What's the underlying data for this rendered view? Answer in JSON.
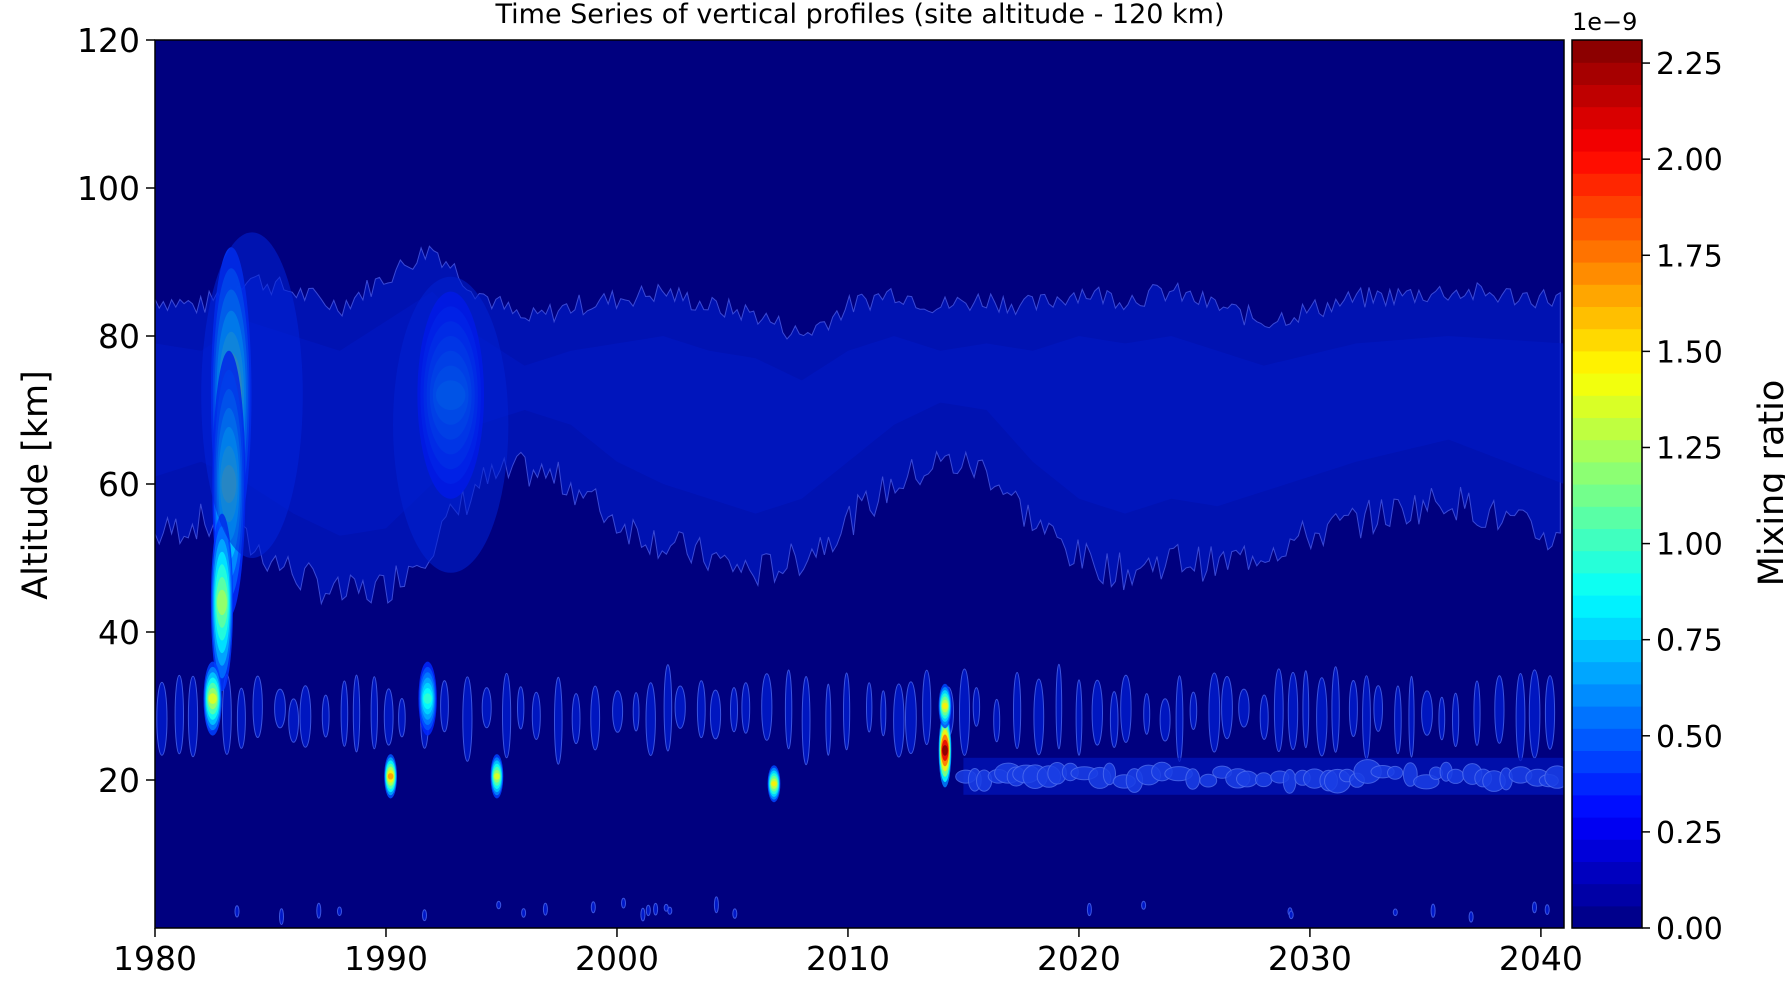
{
  "chart_data": {
    "type": "heatmap",
    "subtype": "filled-contour",
    "title": "Time Series of vertical profiles (site altitude - 120 km)",
    "xlabel": "",
    "ylabel": "Altitude [km]",
    "xlim": [
      1980,
      2041
    ],
    "ylim": [
      0,
      120
    ],
    "xticks": [
      1980,
      1990,
      2000,
      2010,
      2020,
      2030,
      2040
    ],
    "xtick_labels": [
      "1980",
      "1990",
      "2000",
      "2010",
      "2020",
      "2030",
      "2040"
    ],
    "yticks": [
      20,
      40,
      60,
      80,
      100,
      120
    ],
    "ytick_labels": [
      "20",
      "40",
      "60",
      "80",
      "100",
      "120"
    ],
    "colorbar": {
      "label": "Mixing ratio",
      "offset_text": "1e−9",
      "range": [
        0,
        2.31
      ],
      "ticks": [
        0,
        0.25,
        0.5,
        0.75,
        1.0,
        1.25,
        1.5,
        1.75,
        2.0,
        2.25
      ],
      "tick_labels": [
        "0.00",
        "0.25",
        "0.50",
        "0.75",
        "1.00",
        "1.25",
        "1.50",
        "1.75",
        "2.00",
        "2.25"
      ],
      "colormap": "jet",
      "levels": 40
    },
    "background_color": "#00007f",
    "middle_layer": {
      "description_values": "mixing ratio approx 0.15 (x1e-9) band",
      "bottom_km": [
        53,
        55,
        52,
        48,
        45,
        46,
        52,
        60,
        62,
        60,
        55,
        52,
        50,
        48,
        50,
        55,
        60,
        63,
        62,
        55,
        50,
        48,
        50,
        49,
        51,
        55,
        58,
        52
      ],
      "top_km": [
        85,
        84,
        88,
        86,
        84,
        88,
        92,
        86,
        82,
        84,
        85,
        86,
        84,
        83,
        80,
        84,
        86,
        84,
        85,
        84,
        86,
        85,
        86,
        84,
        82,
        85,
        86,
        85
      ],
      "years": [
        1980,
        1982,
        1984,
        1986,
        1988,
        1990,
        1992,
        1994,
        1996,
        1998,
        2000,
        2002,
        2004,
        2006,
        2008,
        2010,
        2012,
        2014,
        2016,
        2018,
        2020,
        2022,
        2024,
        2026,
        2028,
        2032,
        2036,
        2041
      ]
    },
    "plumes": [
      {
        "year": 1983.3,
        "alt_km": 72,
        "peak": 0.95,
        "width_yr": 0.55,
        "height_km": 20
      },
      {
        "year": 1983.2,
        "alt_km": 60,
        "peak": 0.8,
        "width_yr": 0.45,
        "height_km": 18
      },
      {
        "year": 1982.9,
        "alt_km": 44,
        "peak": 0.95,
        "width_yr": 0.3,
        "height_km": 12
      },
      {
        "year": 1982.5,
        "alt_km": 31,
        "peak": 1.1,
        "width_yr": 0.25,
        "height_km": 5
      },
      {
        "year": 1992.8,
        "alt_km": 72,
        "peak": 0.35,
        "width_yr": 0.9,
        "height_km": 14
      },
      {
        "year": 1991.8,
        "alt_km": 31,
        "peak": 0.7,
        "width_yr": 0.25,
        "height_km": 5
      },
      {
        "year": 1990.2,
        "alt_km": 20.5,
        "peak": 1.4,
        "width_yr": 0.12,
        "height_km": 3
      },
      {
        "year": 1994.8,
        "alt_km": 20.5,
        "peak": 1.1,
        "width_yr": 0.12,
        "height_km": 3
      },
      {
        "year": 2006.8,
        "alt_km": 19.5,
        "peak": 1.2,
        "width_yr": 0.12,
        "height_km": 2.5
      },
      {
        "year": 2014.2,
        "alt_km": 24,
        "peak": 2.1,
        "width_yr": 0.14,
        "height_km": 5
      },
      {
        "year": 2014.2,
        "alt_km": 30,
        "peak": 1.2,
        "width_yr": 0.14,
        "height_km": 3
      }
    ],
    "recurring_band_km": 29,
    "post2015_band_km": 20.5
  }
}
